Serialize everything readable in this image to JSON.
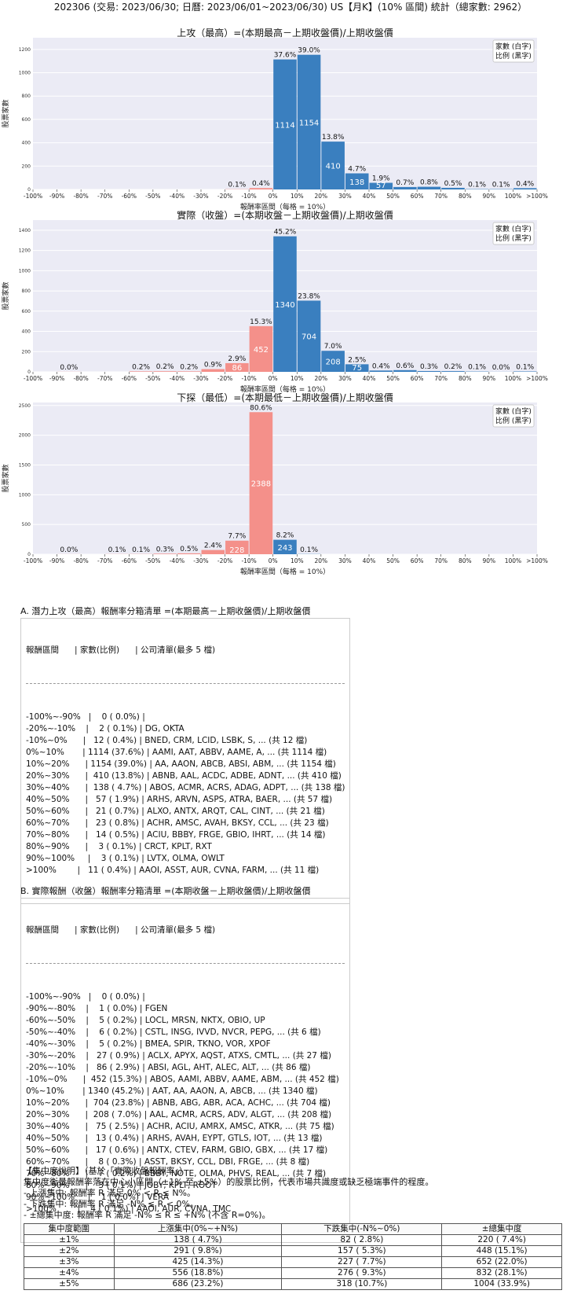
{
  "header": {
    "text": "202306 (交易: 2023/06/30; 日曆: 2023/06/01~2023/06/30) US【月K】(10% 區間) 統計（總家數: 2962）"
  },
  "legend_lines": [
    "家數 (白字)",
    "比例 (黑字)"
  ],
  "colors": {
    "positive": "#3a7fbf",
    "negative": "#f4908a",
    "plot_bg": "#ebebf5",
    "grid": "#ffffff"
  },
  "chart_data": [
    {
      "type": "bar",
      "title": "上攻（最高）=(本期最高－上期收盤價)/上期收盤價",
      "xlabel": "報酬率區間（每格 = 10%）",
      "ylabel": "股票家數",
      "ylim": [
        0,
        1300
      ],
      "yticks": [
        "0",
        "200",
        "400",
        "600",
        "800",
        "1000",
        "1200"
      ],
      "categories": [
        "-100%~-90%",
        "-90%~-80%",
        "-80%~-70%",
        "-70%~-60%",
        "-60%~-50%",
        "-50%~-40%",
        "-40%~-30%",
        "-30%~-20%",
        "-20%~-10%",
        "-10%~0%",
        "0%~10%",
        "10%~20%",
        "20%~30%",
        "30%~40%",
        "40%~50%",
        "50%~60%",
        "60%~70%",
        "70%~80%",
        "80%~90%",
        "90%~100%",
        ">100%"
      ],
      "xticks": [
        "-100%",
        "-90%",
        "-80%",
        "-70%",
        "-60%",
        "-50%",
        "-40%",
        "-30%",
        "-20%",
        "-10%",
        "0%",
        "10%",
        "20%",
        "30%",
        "40%",
        "50%",
        "60%",
        "70%",
        "80%",
        "90%",
        "100%",
        ">100%"
      ],
      "values": [
        0,
        null,
        null,
        null,
        null,
        null,
        null,
        null,
        2,
        12,
        1114,
        1154,
        410,
        138,
        57,
        21,
        23,
        14,
        3,
        3,
        11
      ],
      "count_labels": [
        "",
        "",
        "",
        "",
        "",
        "",
        "",
        "",
        "",
        "",
        "1114",
        "1154",
        "410",
        "138",
        "57",
        "",
        "",
        "",
        "",
        "",
        ""
      ],
      "pct_labels": [
        "",
        "",
        "",
        "",
        "",
        "",
        "",
        "",
        "0.1%",
        "0.4%",
        "37.6%",
        "39.0%",
        "13.8%",
        "4.7%",
        "1.9%",
        "0.7%",
        "0.8%",
        "0.5%",
        "0.1%",
        "0.1%",
        "0.4%"
      ]
    },
    {
      "type": "bar",
      "title": "實際（收盤）=(本期收盤－上期收盤價)/上期收盤價",
      "xlabel": "報酬率區間（每格 = 10%）",
      "ylabel": "股票家數",
      "ylim": [
        0,
        1500
      ],
      "yticks": [
        "0",
        "200",
        "400",
        "600",
        "800",
        "1000",
        "1200",
        "1400"
      ],
      "categories": [
        "-100%~-90%",
        "-90%~-80%",
        "-80%~-70%",
        "-70%~-60%",
        "-60%~-50%",
        "-50%~-40%",
        "-40%~-30%",
        "-30%~-20%",
        "-20%~-10%",
        "-10%~0%",
        "0%~10%",
        "10%~20%",
        "20%~30%",
        "30%~40%",
        "40%~50%",
        "50%~60%",
        "60%~70%",
        "70%~80%",
        "80%~90%",
        "90%~100%",
        ">100%"
      ],
      "xticks": [
        "-100%",
        "-90%",
        "-80%",
        "-70%",
        "-60%",
        "-50%",
        "-40%",
        "-30%",
        "-20%",
        "-10%",
        "0%",
        "10%",
        "20%",
        "30%",
        "40%",
        "50%",
        "60%",
        "70%",
        "80%",
        "90%",
        "100%",
        ">100%"
      ],
      "values": [
        0,
        1,
        null,
        null,
        5,
        6,
        5,
        27,
        86,
        452,
        1340,
        704,
        208,
        75,
        13,
        17,
        8,
        7,
        3,
        1,
        4
      ],
      "count_labels": [
        "",
        "",
        "",
        "",
        "",
        "",
        "",
        "",
        "86",
        "452",
        "1340",
        "704",
        "208",
        "75",
        "",
        "",
        "",
        "",
        "",
        "",
        ""
      ],
      "pct_labels": [
        "",
        "0.0%",
        "",
        "",
        "0.2%",
        "0.2%",
        "0.2%",
        "0.9%",
        "2.9%",
        "15.3%",
        "45.2%",
        "23.8%",
        "7.0%",
        "2.5%",
        "0.4%",
        "0.6%",
        "0.3%",
        "0.2%",
        "0.1%",
        "0.0%",
        "0.1%"
      ]
    },
    {
      "type": "bar",
      "title": "下探（最低）=(本期最低－上期收盤價)/上期收盤價",
      "xlabel": "報酬率區間（每格 = 10%）",
      "ylabel": "股票家數",
      "ylim": [
        0,
        2550
      ],
      "yticks": [
        "0",
        "500",
        "1000",
        "1500",
        "2000",
        "2500"
      ],
      "categories": [
        "-100%~-90%",
        "-90%~-80%",
        "-80%~-70%",
        "-70%~-60%",
        "-60%~-50%",
        "-50%~-40%",
        "-40%~-30%",
        "-30%~-20%",
        "-20%~-10%",
        "-10%~0%",
        "0%~10%",
        "10%~20%",
        "20%~30%",
        "30%~40%",
        "40%~50%",
        "50%~60%",
        "60%~70%",
        "70%~80%",
        "80%~90%",
        "90%~100%",
        ">100%"
      ],
      "xticks": [
        "-100%",
        "-90%",
        "-80%",
        "-70%",
        "-60%",
        "-50%",
        "-40%",
        "-30%",
        "-20%",
        "-10%",
        "0%",
        "10%",
        "20%",
        "30%",
        "40%",
        "50%",
        "60%",
        "70%",
        "80%",
        "90%",
        "100%",
        ">100%"
      ],
      "values": [
        0,
        1,
        null,
        2,
        3,
        9,
        15,
        71,
        228,
        2388,
        243,
        3,
        null,
        null,
        null,
        null,
        null,
        null,
        null,
        null,
        null
      ],
      "count_labels": [
        "",
        "",
        "",
        "",
        "",
        "",
        "",
        "",
        "228",
        "2388",
        "243",
        "",
        "",
        "",
        "",
        "",
        "",
        "",
        "",
        "",
        ""
      ],
      "pct_labels": [
        "",
        "0.0%",
        "",
        "0.1%",
        "0.1%",
        "0.3%",
        "0.5%",
        "2.4%",
        "7.7%",
        "80.6%",
        "8.2%",
        "0.1%",
        "",
        "",
        "",
        "",
        "",
        "",
        "",
        "",
        ""
      ]
    }
  ],
  "list_a": {
    "title": "A. 潛力上攻（最高）報酬率分箱清單 =(本期最高－上期收盤價)/上期收盤價",
    "header": "報酬區間      | 家數(比例)      | 公司清單(最多 5 檔)",
    "rows": [
      "-100%~-90%   |    0 ( 0.0%) |",
      "-20%~-10%    |    2 ( 0.1%) | DG, OKTA",
      "-10%~0%      |   12 ( 0.4%) | BNED, CRM, LCID, LSBK, S, ... (共 12 檔)",
      "0%~10%       | 1114 (37.6%) | AAMI, AAT, ABBV, AAME, A, ... (共 1114 檔)",
      "10%~20%      | 1154 (39.0%) | AA, AAON, ABCB, ABSI, ABM, ... (共 1154 檔)",
      "20%~30%      |  410 (13.8%) | ABNB, AAL, ACDC, ADBE, ADNT, ... (共 410 檔)",
      "30%~40%      |  138 ( 4.7%) | ABOS, ACMR, ACRS, ADAG, ADPT, ... (共 138 檔)",
      "40%~50%      |   57 ( 1.9%) | ARHS, ARVN, ASPS, ATRA, BAER, ... (共 57 檔)",
      "50%~60%      |   21 ( 0.7%) | ALXO, ANTX, ARQT, CAL, CINT, ... (共 21 檔)",
      "60%~70%      |   23 ( 0.8%) | ACHR, AMSC, AVAH, BKSY, CCL, ... (共 23 檔)",
      "70%~80%      |   14 ( 0.5%) | ACIU, BBBY, FRGE, GBIO, IHRT, ... (共 14 檔)",
      "80%~90%      |    3 ( 0.1%) | CRCT, KPLT, RXT",
      "90%~100%     |    3 ( 0.1%) | LVTX, OLMA, OWLT",
      ">100%        |   11 ( 0.4%) | AAOI, ASST, AUR, CVNA, FARM, ... (共 11 檔)"
    ]
  },
  "list_b": {
    "title": "B. 實際報酬（收盤）報酬率分箱清單 =(本期收盤－上期收盤價)/上期收盤價",
    "header": "報酬區間      | 家數(比例)      | 公司清單(最多 5 檔)",
    "rows": [
      "-100%~-90%   |    0 ( 0.0%) |",
      "-90%~-80%    |    1 ( 0.0%) | FGEN",
      "-60%~-50%    |    5 ( 0.2%) | LOCL, MRSN, NKTX, OBIO, UP",
      "-50%~-40%    |    6 ( 0.2%) | CSTL, INSG, IVVD, NVCR, PEPG, ... (共 6 檔)",
      "-40%~-30%    |    5 ( 0.2%) | BMEA, SPIR, TKNO, VOR, XPOF",
      "-30%~-20%    |   27 ( 0.9%) | ACLX, APYX, AQST, ATXS, CMTL, ... (共 27 檔)",
      "-20%~-10%    |   86 ( 2.9%) | ABSI, AGL, AHT, ALEC, ALT, ... (共 86 檔)",
      "-10%~0%      |  452 (15.3%) | ABOS, AAMI, ABBV, AAME, ABM, ... (共 452 檔)",
      "0%~10%       | 1340 (45.2%) | AAT, AA, AAON, A, ABCB, ... (共 1340 檔)",
      "10%~20%      |  704 (23.8%) | ABNB, ABG, ABR, ACA, ACHC, ... (共 704 檔)",
      "20%~30%      |  208 ( 7.0%) | AAL, ACMR, ACRS, ADV, ALGT, ... (共 208 檔)",
      "30%~40%      |   75 ( 2.5%) | ACHR, ACIU, AMRX, AMSC, ATKR, ... (共 75 檔)",
      "40%~50%      |   13 ( 0.4%) | ARHS, AVAH, EYPT, GTLS, IOT, ... (共 13 檔)",
      "50%~60%      |   17 ( 0.6%) | ANTX, CTEV, FARM, GBIO, GBX, ... (共 17 檔)",
      "60%~70%      |    8 ( 0.3%) | ASST, BKSY, CCL, DBI, FRGE, ... (共 8 檔)",
      "70%~80%      |    7 ( 0.2%) | BBBY, NOTE, OLMA, PHVS, REAL, ... (共 7 檔)",
      "80%~90%      |    3 ( 0.1%) | JOBY, KPLT, ROOT",
      "90%~100%     |    1 ( 0.0%) | VERA",
      ">100%        |    4 ( 0.1%) | AAOI, AUR, CVNA, TMC"
    ]
  },
  "concentration": {
    "heading": "【集中度說明】（基於「實際收盤報酬率」）",
    "lines": [
      "集中度衡量報酬率落在中心小區間（±1% 至 ±5%）的股票比例，代表市場共識度或缺乏極端事件的程度。",
      " - 上漲集中: 報酬率 R 滿足 0% < R ≤ N%。",
      " - 下跌集中: 報酬率 R 滿足 -N% ≤ R < 0%。",
      " - ±總集中度: 報酬率 R 滿足 -N% ≤ R ≤ +N% (不含 R=0%)。"
    ],
    "columns": [
      "集中度範圍",
      "上漲集中(0%~+N%)",
      "下跌集中(-N%~0%)",
      "±總集中度"
    ],
    "rows": [
      [
        "±1%",
        "138 ( 4.7%)",
        "82 ( 2.8%)",
        "220 ( 7.4%)"
      ],
      [
        "±2%",
        "291 ( 9.8%)",
        "157 ( 5.3%)",
        "448 (15.1%)"
      ],
      [
        "±3%",
        "425 (14.3%)",
        "227 ( 7.7%)",
        "652 (22.0%)"
      ],
      [
        "±4%",
        "556 (18.8%)",
        "276 ( 9.3%)",
        "832 (28.1%)"
      ],
      [
        "±5%",
        "686 (23.2%)",
        "318 (10.7%)",
        "1004 (33.9%)"
      ]
    ]
  }
}
